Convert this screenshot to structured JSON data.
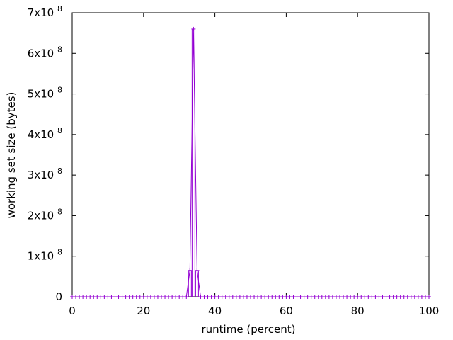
{
  "chart_data": {
    "type": "line",
    "xlabel": "runtime (percent)",
    "ylabel": "working set size (bytes)",
    "xlim": [
      0,
      100
    ],
    "ylim": [
      0,
      700000000
    ],
    "x_ticks": [
      0,
      20,
      40,
      60,
      80,
      100
    ],
    "x_tick_labels": [
      "0",
      "20",
      "40",
      "60",
      "80",
      "100"
    ],
    "y_ticks": [
      0,
      100000000,
      200000000,
      300000000,
      400000000,
      500000000,
      600000000,
      700000000
    ],
    "y_tick_labels": [
      {
        "mantissa": "0",
        "exp": ""
      },
      {
        "mantissa": "1x10",
        "exp": "8"
      },
      {
        "mantissa": "2x10",
        "exp": "8"
      },
      {
        "mantissa": "3x10",
        "exp": "8"
      },
      {
        "mantissa": "4x10",
        "exp": "8"
      },
      {
        "mantissa": "5x10",
        "exp": "8"
      },
      {
        "mantissa": "6x10",
        "exp": "8"
      },
      {
        "mantissa": "7x10",
        "exp": "8"
      }
    ],
    "grid": false,
    "legend": "none",
    "marker": "+",
    "color": "#9400d3",
    "series": [
      {
        "x_start": 0,
        "x_step": 1,
        "count": 101,
        "peak": [
          {
            "x": 33,
            "y": 65000000
          },
          {
            "x": 34,
            "y": 660000000
          },
          {
            "x": 35,
            "y": 65000000
          }
        ],
        "baseline_y": 0
      }
    ]
  }
}
